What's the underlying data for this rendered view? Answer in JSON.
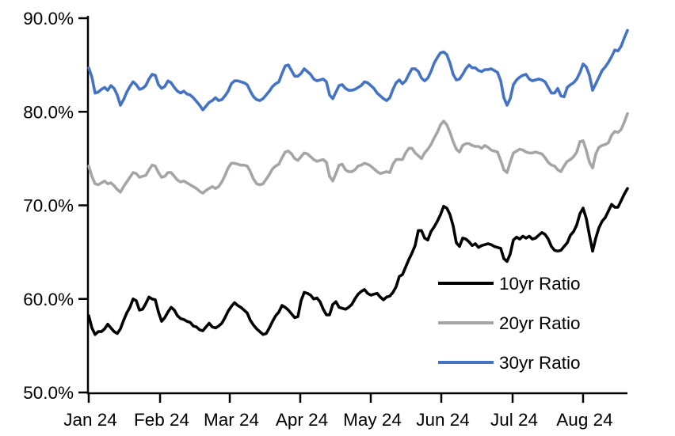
{
  "chart_data": {
    "type": "line",
    "title": "",
    "xlabel": "",
    "ylabel": "",
    "ylim": [
      50,
      90
    ],
    "grid": false,
    "background": "#ffffff",
    "axis_color": "#000000",
    "y_ticks": {
      "values": [
        90,
        80,
        70,
        60,
        50
      ],
      "labels": [
        "90.0%",
        "80.0%",
        "70.0%",
        "60.0%",
        "50.0%"
      ]
    },
    "x_ticks": {
      "labels": [
        "Jan 24",
        "Feb 24",
        "Mar 24",
        "Apr 24",
        "May 24",
        "Jun 24",
        "Jul 24",
        "Aug 24"
      ],
      "positions": [
        0.0,
        0.1324,
        0.2618,
        0.3926,
        0.5235,
        0.6544,
        0.7868,
        0.9176
      ]
    },
    "legend": {
      "position": "inside-lower-right",
      "items": [
        "10yr Ratio",
        "20yr Ratio",
        "30yr Ratio"
      ]
    },
    "series": [
      {
        "name": "10yr Ratio",
        "color": "#000000",
        "values": [
          58.2,
          56.9,
          56.2,
          56.5,
          56.5,
          56.8,
          57.3,
          56.9,
          56.5,
          56.3,
          56.8,
          57.7,
          58.5,
          59.1,
          60.0,
          59.8,
          58.8,
          58.9,
          59.5,
          60.2,
          60.0,
          59.9,
          58.6,
          57.6,
          58.0,
          58.6,
          59.1,
          58.8,
          58.2,
          57.9,
          57.8,
          57.6,
          57.5,
          57.1,
          57.0,
          56.7,
          56.6,
          57.0,
          57.4,
          57.0,
          56.9,
          57.1,
          57.4,
          58.0,
          58.7,
          59.2,
          59.6,
          59.3,
          59.1,
          58.8,
          58.5,
          57.7,
          57.2,
          56.8,
          56.5,
          56.2,
          56.3,
          56.9,
          57.6,
          58.2,
          58.6,
          59.3,
          59.1,
          58.8,
          58.4,
          58.0,
          58.1,
          59.8,
          60.7,
          60.6,
          60.4,
          60.0,
          60.1,
          59.7,
          58.9,
          58.3,
          58.3,
          59.4,
          59.7,
          59.1,
          59.0,
          58.9,
          59.1,
          59.4,
          60.0,
          60.5,
          60.8,
          61.0,
          60.6,
          60.4,
          60.5,
          60.6,
          60.2,
          59.9,
          60.2,
          60.3,
          60.7,
          61.3,
          62.4,
          62.6,
          63.4,
          64.2,
          64.9,
          65.7,
          67.3,
          67.3,
          66.5,
          66.3,
          67.2,
          67.7,
          68.3,
          69.0,
          69.9,
          69.7,
          69.0,
          67.8,
          66.0,
          65.6,
          66.5,
          66.4,
          66.1,
          65.7,
          65.9,
          65.5,
          65.7,
          65.8,
          65.9,
          65.8,
          65.6,
          65.5,
          65.4,
          64.3,
          64.0,
          64.8,
          66.3,
          66.6,
          66.4,
          66.7,
          66.5,
          66.7,
          66.4,
          66.5,
          66.8,
          67.1,
          66.9,
          66.4,
          65.6,
          65.2,
          65.1,
          65.2,
          65.6,
          66.0,
          66.8,
          67.2,
          67.9,
          69.1,
          69.7,
          68.6,
          66.8,
          65.1,
          66.5,
          67.6,
          68.3,
          68.7,
          69.4,
          70.1,
          69.8,
          69.8,
          70.5,
          71.2,
          71.8
        ]
      },
      {
        "name": "20yr Ratio",
        "color": "#A5A5A5",
        "values": [
          74.2,
          73.1,
          72.3,
          72.2,
          72.4,
          72.6,
          72.3,
          72.4,
          72.1,
          71.7,
          71.4,
          72.0,
          72.5,
          73.0,
          73.5,
          73.4,
          73.0,
          73.1,
          73.2,
          73.8,
          74.3,
          74.2,
          73.5,
          73.0,
          73.1,
          73.5,
          73.5,
          73.1,
          72.7,
          72.5,
          72.6,
          72.4,
          72.2,
          72.0,
          71.8,
          71.5,
          71.3,
          71.6,
          71.8,
          72.0,
          71.8,
          72.0,
          72.5,
          73.2,
          74.0,
          74.5,
          74.5,
          74.4,
          74.3,
          74.3,
          74.2,
          73.6,
          72.8,
          72.3,
          72.2,
          72.3,
          72.8,
          73.3,
          73.9,
          74.2,
          74.4,
          75.1,
          75.7,
          75.8,
          75.5,
          75.0,
          74.8,
          75.2,
          75.6,
          75.5,
          75.2,
          74.9,
          74.7,
          74.8,
          74.9,
          74.6,
          73.1,
          72.6,
          73.4,
          74.3,
          74.4,
          73.8,
          73.6,
          73.6,
          73.8,
          74.2,
          74.3,
          74.5,
          74.4,
          74.2,
          73.9,
          73.6,
          73.4,
          73.5,
          73.6,
          73.5,
          74.4,
          74.9,
          74.9,
          74.9,
          75.6,
          76.1,
          76.1,
          75.6,
          75.3,
          75.0,
          75.6,
          76.0,
          76.5,
          77.2,
          77.8,
          78.6,
          79.0,
          78.6,
          77.8,
          76.8,
          76.0,
          75.7,
          76.4,
          76.6,
          76.6,
          76.4,
          76.3,
          76.3,
          76.1,
          76.4,
          76.2,
          75.9,
          75.8,
          75.7,
          74.8,
          73.8,
          73.5,
          74.6,
          75.6,
          75.8,
          76.0,
          75.9,
          75.7,
          75.6,
          75.6,
          75.7,
          75.6,
          75.5,
          75.1,
          74.6,
          74.3,
          74.2,
          73.8,
          73.6,
          74.2,
          74.7,
          74.9,
          75.2,
          75.7,
          76.8,
          76.9,
          75.9,
          74.6,
          74.0,
          75.5,
          76.2,
          76.4,
          76.5,
          76.7,
          77.5,
          77.9,
          77.8,
          78.1,
          78.9,
          79.8
        ]
      },
      {
        "name": "30yr Ratio",
        "color": "#4472C4",
        "values": [
          84.7,
          83.7,
          82.0,
          82.1,
          82.4,
          82.6,
          82.3,
          82.8,
          82.5,
          81.8,
          80.7,
          81.3,
          82.1,
          82.7,
          83.2,
          82.9,
          82.4,
          82.5,
          82.8,
          83.5,
          84.0,
          83.9,
          82.9,
          82.5,
          82.7,
          83.3,
          83.1,
          82.6,
          82.2,
          82.0,
          82.2,
          81.9,
          81.8,
          81.5,
          81.1,
          80.7,
          80.2,
          80.6,
          81.0,
          81.2,
          81.5,
          81.2,
          81.3,
          81.7,
          82.2,
          83.0,
          83.3,
          83.3,
          83.2,
          83.1,
          82.9,
          82.2,
          81.6,
          81.3,
          81.2,
          81.4,
          81.8,
          82.2,
          82.7,
          83.0,
          83.2,
          84.1,
          84.9,
          85.0,
          84.4,
          83.8,
          83.8,
          84.1,
          84.6,
          84.3,
          84.0,
          83.5,
          83.3,
          83.4,
          83.5,
          83.2,
          81.8,
          81.4,
          82.1,
          82.8,
          82.9,
          82.5,
          82.3,
          82.3,
          82.4,
          82.6,
          82.8,
          83.2,
          83.1,
          82.8,
          82.5,
          82.0,
          81.7,
          81.4,
          81.2,
          81.5,
          82.4,
          83.1,
          83.4,
          83.0,
          83.3,
          84.0,
          84.6,
          84.6,
          84.3,
          83.6,
          83.3,
          83.6,
          84.3,
          85.2,
          85.8,
          86.3,
          86.4,
          86.1,
          85.2,
          84.0,
          83.4,
          83.5,
          84.0,
          84.6,
          85.0,
          84.7,
          84.7,
          84.4,
          84.3,
          84.5,
          84.5,
          84.6,
          84.4,
          84.2,
          83.3,
          81.5,
          80.7,
          81.4,
          82.9,
          83.4,
          83.7,
          83.9,
          84.0,
          83.5,
          83.3,
          83.4,
          83.5,
          83.4,
          83.2,
          82.6,
          82.0,
          82.0,
          82.5,
          81.7,
          81.6,
          82.6,
          82.9,
          83.1,
          83.5,
          84.2,
          85.1,
          84.8,
          83.9,
          82.3,
          83.0,
          83.7,
          84.4,
          84.8,
          85.3,
          85.9,
          86.6,
          86.5,
          87.0,
          87.9,
          88.7
        ]
      }
    ]
  }
}
